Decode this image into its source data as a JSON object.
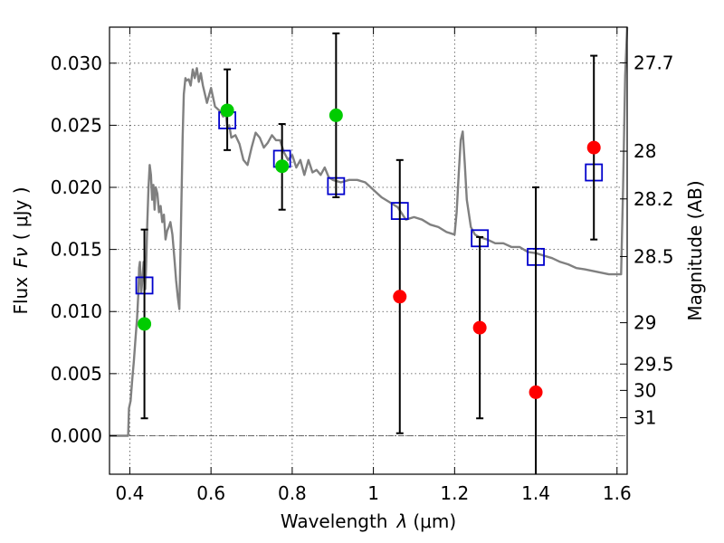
{
  "chart_data": {
    "type": "scatter",
    "xlabel_text": "Wavelength",
    "xlabel_symbol": "λ",
    "xlabel_unit": "(μm)",
    "ylabel_text": "Flux",
    "ylabel_symbol": "Fν",
    "ylabel_unit": "( μJy )",
    "ylabel_right": "Magnitude (AB)",
    "xlim": [
      0.35,
      1.625
    ],
    "ylim": [
      -0.0031,
      0.0329
    ],
    "grid": true,
    "x_ticks": [
      {
        "value": 0.4,
        "label": "0.4"
      },
      {
        "value": 0.6,
        "label": "0.6"
      },
      {
        "value": 0.8,
        "label": "0.8"
      },
      {
        "value": 1.0,
        "label": "1"
      },
      {
        "value": 1.2,
        "label": "1.2"
      },
      {
        "value": 1.4,
        "label": "1.4"
      },
      {
        "value": 1.6,
        "label": "1.6"
      }
    ],
    "y_ticks": [
      {
        "value": 0.0,
        "label": "0.000"
      },
      {
        "value": 0.005,
        "label": "0.005"
      },
      {
        "value": 0.01,
        "label": "0.010"
      },
      {
        "value": 0.015,
        "label": "0.015"
      },
      {
        "value": 0.02,
        "label": "0.020"
      },
      {
        "value": 0.025,
        "label": "0.025"
      },
      {
        "value": 0.03,
        "label": "0.030"
      }
    ],
    "right_ticks": [
      {
        "flux": 0.03003,
        "label": "27.7"
      },
      {
        "flux": 0.02291,
        "label": "28"
      },
      {
        "flux": 0.01907,
        "label": "28.2"
      },
      {
        "flux": 0.01443,
        "label": "28.5"
      },
      {
        "flux": 0.0091,
        "label": "29"
      },
      {
        "flux": 0.00577,
        "label": "29.5"
      },
      {
        "flux": 0.00365,
        "label": "30"
      },
      {
        "flux": 0.00145,
        "label": "31"
      }
    ],
    "series": [
      {
        "kind": "line",
        "color": "#808080",
        "x": [
          0.35,
          0.396,
          0.398,
          0.402,
          0.406,
          0.41,
          0.414,
          0.418,
          0.421,
          0.423,
          0.425,
          0.428,
          0.431,
          0.434,
          0.436,
          0.438,
          0.44,
          0.443,
          0.446,
          0.449,
          0.452,
          0.455,
          0.458,
          0.461,
          0.464,
          0.468,
          0.472,
          0.476,
          0.48,
          0.484,
          0.488,
          0.492,
          0.496,
          0.5,
          0.505,
          0.51,
          0.514,
          0.518,
          0.522,
          0.526,
          0.53,
          0.533,
          0.537,
          0.54,
          0.545,
          0.55,
          0.555,
          0.56,
          0.565,
          0.57,
          0.575,
          0.58,
          0.59,
          0.6,
          0.61,
          0.62,
          0.625,
          0.63,
          0.635,
          0.64,
          0.645,
          0.65,
          0.66,
          0.67,
          0.68,
          0.69,
          0.7,
          0.71,
          0.72,
          0.73,
          0.74,
          0.75,
          0.76,
          0.77,
          0.78,
          0.79,
          0.8,
          0.81,
          0.82,
          0.83,
          0.84,
          0.85,
          0.86,
          0.87,
          0.88,
          0.89,
          0.9,
          0.92,
          0.94,
          0.96,
          0.98,
          1.0,
          1.02,
          1.04,
          1.06,
          1.08,
          1.1,
          1.12,
          1.14,
          1.16,
          1.18,
          1.2,
          1.205,
          1.21,
          1.215,
          1.22,
          1.225,
          1.23,
          1.24,
          1.25,
          1.26,
          1.28,
          1.3,
          1.32,
          1.34,
          1.36,
          1.38,
          1.4,
          1.42,
          1.44,
          1.46,
          1.48,
          1.5,
          1.52,
          1.55,
          1.58,
          1.6,
          1.61,
          1.615,
          1.62,
          1.625
        ],
        "y": [
          0.0,
          0.0,
          0.0022,
          0.0028,
          0.0045,
          0.006,
          0.0078,
          0.0095,
          0.0115,
          0.0135,
          0.014,
          0.0115,
          0.0125,
          0.014,
          0.0132,
          0.0118,
          0.0135,
          0.017,
          0.02,
          0.0218,
          0.021,
          0.019,
          0.0202,
          0.0182,
          0.02,
          0.0195,
          0.018,
          0.0185,
          0.0172,
          0.0178,
          0.0158,
          0.0165,
          0.0168,
          0.0172,
          0.0162,
          0.0142,
          0.0125,
          0.0112,
          0.0102,
          0.017,
          0.024,
          0.0275,
          0.0288,
          0.0286,
          0.0287,
          0.0282,
          0.0295,
          0.0288,
          0.0296,
          0.0285,
          0.0292,
          0.0282,
          0.0268,
          0.028,
          0.0265,
          0.0262,
          0.026,
          0.0257,
          0.0264,
          0.0248,
          0.025,
          0.024,
          0.0242,
          0.0235,
          0.0222,
          0.0218,
          0.0232,
          0.0244,
          0.024,
          0.0232,
          0.0236,
          0.0242,
          0.0238,
          0.0238,
          0.0228,
          0.0222,
          0.0226,
          0.0216,
          0.0222,
          0.021,
          0.0222,
          0.0212,
          0.0214,
          0.021,
          0.0216,
          0.0208,
          0.0206,
          0.0204,
          0.0206,
          0.0206,
          0.0204,
          0.0198,
          0.0192,
          0.0188,
          0.0184,
          0.0174,
          0.0176,
          0.0174,
          0.017,
          0.0168,
          0.0164,
          0.0162,
          0.018,
          0.021,
          0.0238,
          0.0245,
          0.022,
          0.019,
          0.0168,
          0.0162,
          0.016,
          0.0158,
          0.0155,
          0.0155,
          0.0152,
          0.0152,
          0.0148,
          0.0147,
          0.0145,
          0.0143,
          0.014,
          0.0138,
          0.0135,
          0.0134,
          0.0132,
          0.013,
          0.013,
          0.013,
          0.02,
          0.029,
          0.0329
        ]
      },
      {
        "kind": "markers",
        "marker": "square",
        "color": "#0000cc",
        "x": [
          0.436,
          0.64,
          0.775,
          0.908,
          1.065,
          1.262,
          1.4,
          1.543
        ],
        "y": [
          0.0121,
          0.0254,
          0.0223,
          0.0201,
          0.0181,
          0.0159,
          0.0144,
          0.0212
        ]
      },
      {
        "kind": "markers",
        "marker": "circle",
        "color": "#00cc00",
        "x": [
          0.436,
          0.64,
          0.775,
          0.908
        ],
        "y": [
          0.009,
          0.0262,
          0.0217,
          0.0258
        ],
        "yerr_lo": [
          0.0014,
          0.023,
          0.0182,
          0.0192
        ],
        "yerr_hi": [
          0.0166,
          0.0295,
          0.0251,
          0.0324
        ]
      },
      {
        "kind": "markers",
        "marker": "circle",
        "color": "#ff0000",
        "x": [
          1.065,
          1.262,
          1.4,
          1.543
        ],
        "y": [
          0.0112,
          0.0087,
          0.0035,
          0.0232
        ],
        "yerr_lo": [
          0.0002,
          0.0014,
          -0.0031,
          0.0158
        ],
        "yerr_hi": [
          0.0222,
          0.016,
          0.02,
          0.0306
        ]
      }
    ]
  }
}
